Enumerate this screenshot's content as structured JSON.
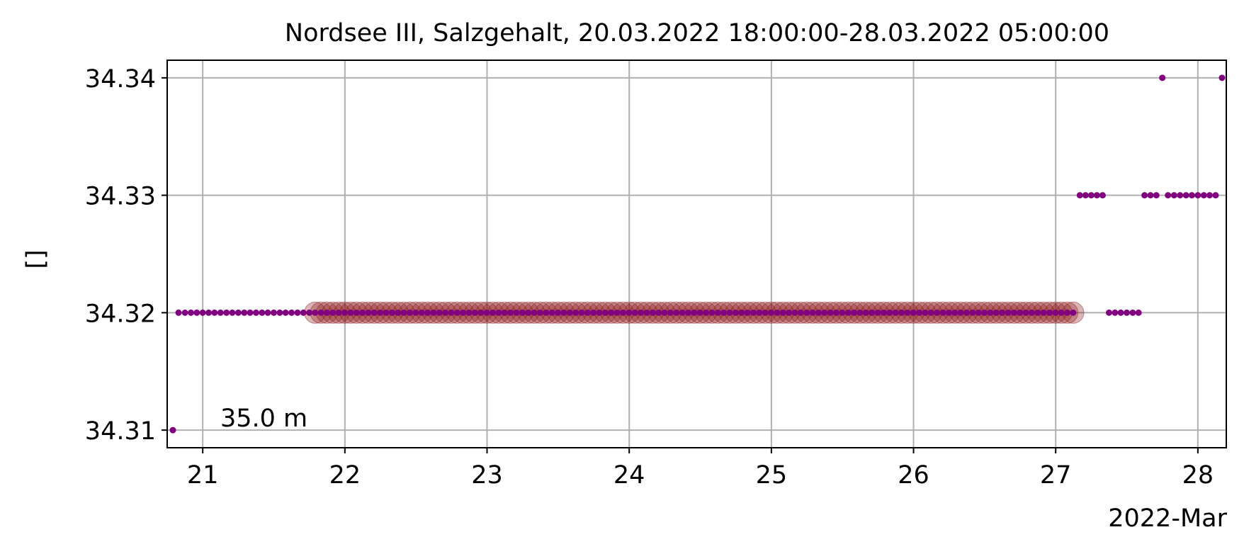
{
  "chart_data": {
    "type": "scatter",
    "title": "Nordsee III, Salzgehalt, 20.03.2022 18:00:00-28.03.2022 05:00:00",
    "xlabel": "2022-Mar",
    "ylabel": "[]",
    "annotation": "35.0 m",
    "x_tick_labels": [
      "21",
      "22",
      "23",
      "24",
      "25",
      "26",
      "27",
      "28"
    ],
    "x_ticks": [
      21,
      22,
      23,
      24,
      25,
      26,
      27,
      28
    ],
    "y_tick_labels": [
      "34.31",
      "34.32",
      "34.33",
      "34.34"
    ],
    "y_ticks": [
      34.31,
      34.32,
      34.33,
      34.34
    ],
    "xlim": [
      20.75,
      28.2
    ],
    "ylim": [
      34.3085,
      34.3415
    ],
    "x_unit": "day of March 2022",
    "grid": true,
    "colors": {
      "points": "#800080",
      "highlight": "#8b1a1a",
      "grid": "#b0b0b0"
    },
    "series": [
      {
        "marker": "small-dot",
        "points": [
          [
            20.79,
            34.31
          ],
          [
            20.83,
            34.32
          ],
          [
            20.875,
            34.32
          ],
          [
            20.917,
            34.32
          ],
          [
            20.958,
            34.32
          ],
          [
            21.0,
            34.32
          ],
          [
            21.042,
            34.32
          ],
          [
            21.083,
            34.32
          ],
          [
            21.125,
            34.32
          ],
          [
            21.167,
            34.32
          ],
          [
            21.208,
            34.32
          ],
          [
            21.25,
            34.32
          ],
          [
            21.292,
            34.32
          ],
          [
            21.333,
            34.32
          ],
          [
            21.375,
            34.32
          ],
          [
            21.417,
            34.32
          ],
          [
            21.458,
            34.32
          ],
          [
            21.5,
            34.32
          ],
          [
            21.542,
            34.32
          ],
          [
            21.583,
            34.32
          ],
          [
            21.625,
            34.32
          ],
          [
            21.667,
            34.32
          ],
          [
            21.708,
            34.32
          ],
          [
            21.75,
            34.32
          ],
          [
            27.17,
            34.33
          ],
          [
            27.21,
            34.33
          ],
          [
            27.25,
            34.33
          ],
          [
            27.29,
            34.33
          ],
          [
            27.33,
            34.33
          ],
          [
            27.375,
            34.32
          ],
          [
            27.417,
            34.32
          ],
          [
            27.458,
            34.32
          ],
          [
            27.5,
            34.32
          ],
          [
            27.542,
            34.32
          ],
          [
            27.583,
            34.32
          ],
          [
            27.625,
            34.33
          ],
          [
            27.667,
            34.33
          ],
          [
            27.708,
            34.33
          ],
          [
            27.75,
            34.34
          ],
          [
            27.79,
            34.33
          ],
          [
            27.833,
            34.33
          ],
          [
            27.875,
            34.33
          ],
          [
            27.917,
            34.33
          ],
          [
            27.958,
            34.33
          ],
          [
            28.0,
            34.33
          ],
          [
            28.042,
            34.33
          ],
          [
            28.083,
            34.33
          ],
          [
            28.125,
            34.33
          ],
          [
            28.17,
            34.34
          ]
        ]
      },
      {
        "marker": "highlighted-dot",
        "y": 34.32,
        "x_start": 21.79,
        "x_end": 27.125,
        "interval_hours": 1
      }
    ]
  }
}
